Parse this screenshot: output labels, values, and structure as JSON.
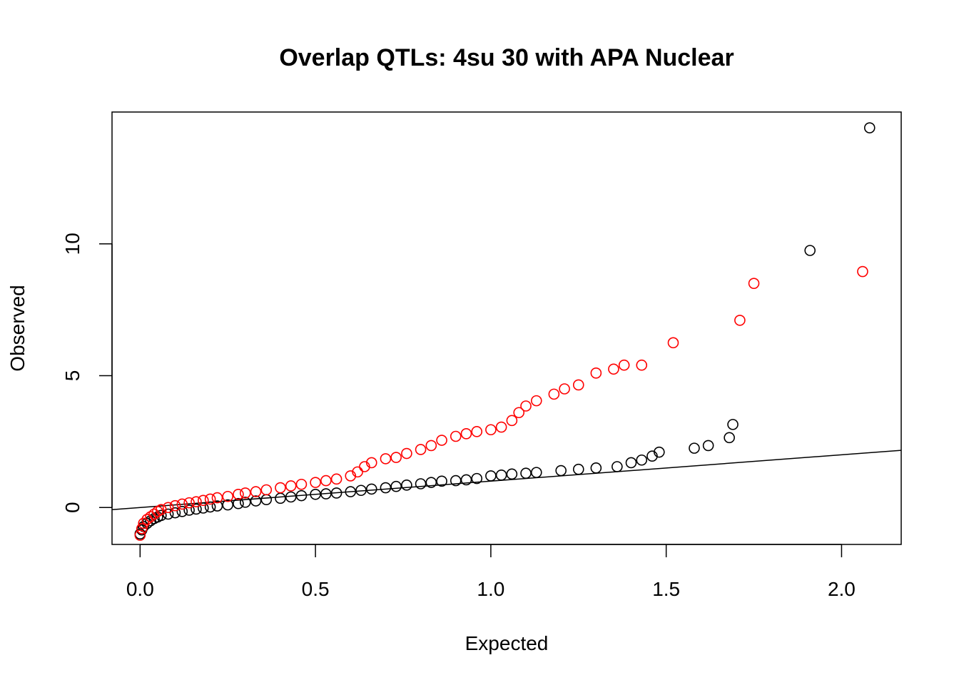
{
  "chart_data": {
    "type": "scatter",
    "title": "Overlap QTLs: 4su 30 with APA Nuclear",
    "xlabel": "Expected",
    "ylabel": "Observed",
    "xlim": [
      -0.08,
      2.17
    ],
    "ylim": [
      -1.4,
      15.0
    ],
    "x_ticks": [
      0.0,
      0.5,
      1.0,
      1.5,
      2.0
    ],
    "x_tick_labels": [
      "0.0",
      "0.5",
      "1.0",
      "1.5",
      "2.0"
    ],
    "y_ticks": [
      0,
      5,
      10
    ],
    "y_tick_labels": [
      "0",
      "5",
      "10"
    ],
    "grid": false,
    "legend": "none",
    "reference_line": {
      "intercept": 0,
      "slope": 1,
      "color": "#000000"
    },
    "series": [
      {
        "color": "#000000",
        "points": [
          [
            0.0,
            -1.0
          ],
          [
            0.005,
            -0.85
          ],
          [
            0.01,
            -0.72
          ],
          [
            0.02,
            -0.6
          ],
          [
            0.03,
            -0.5
          ],
          [
            0.04,
            -0.42
          ],
          [
            0.05,
            -0.36
          ],
          [
            0.06,
            -0.3
          ],
          [
            0.08,
            -0.25
          ],
          [
            0.1,
            -0.2
          ],
          [
            0.12,
            -0.15
          ],
          [
            0.14,
            -0.1
          ],
          [
            0.16,
            -0.06
          ],
          [
            0.18,
            -0.02
          ],
          [
            0.2,
            0.02
          ],
          [
            0.22,
            0.06
          ],
          [
            0.25,
            0.1
          ],
          [
            0.28,
            0.15
          ],
          [
            0.3,
            0.2
          ],
          [
            0.33,
            0.25
          ],
          [
            0.36,
            0.3
          ],
          [
            0.4,
            0.35
          ],
          [
            0.43,
            0.4
          ],
          [
            0.46,
            0.45
          ],
          [
            0.5,
            0.5
          ],
          [
            0.53,
            0.52
          ],
          [
            0.56,
            0.55
          ],
          [
            0.6,
            0.6
          ],
          [
            0.63,
            0.65
          ],
          [
            0.66,
            0.7
          ],
          [
            0.7,
            0.75
          ],
          [
            0.73,
            0.8
          ],
          [
            0.76,
            0.85
          ],
          [
            0.8,
            0.9
          ],
          [
            0.83,
            0.95
          ],
          [
            0.86,
            1.0
          ],
          [
            0.9,
            1.02
          ],
          [
            0.93,
            1.05
          ],
          [
            0.96,
            1.1
          ],
          [
            1.0,
            1.2
          ],
          [
            1.03,
            1.23
          ],
          [
            1.06,
            1.27
          ],
          [
            1.1,
            1.3
          ],
          [
            1.13,
            1.33
          ],
          [
            1.2,
            1.4
          ],
          [
            1.25,
            1.45
          ],
          [
            1.3,
            1.5
          ],
          [
            1.36,
            1.55
          ],
          [
            1.4,
            1.7
          ],
          [
            1.43,
            1.8
          ],
          [
            1.46,
            1.95
          ],
          [
            1.48,
            2.1
          ],
          [
            1.58,
            2.25
          ],
          [
            1.62,
            2.35
          ],
          [
            1.68,
            2.65
          ],
          [
            1.69,
            3.15
          ],
          [
            1.91,
            9.75
          ],
          [
            2.08,
            14.4
          ]
        ]
      },
      {
        "color": "#ff0000",
        "points": [
          [
            0.0,
            -1.05
          ],
          [
            0.005,
            -0.8
          ],
          [
            0.01,
            -0.6
          ],
          [
            0.02,
            -0.45
          ],
          [
            0.03,
            -0.35
          ],
          [
            0.04,
            -0.25
          ],
          [
            0.05,
            -0.15
          ],
          [
            0.06,
            -0.08
          ],
          [
            0.08,
            0.0
          ],
          [
            0.1,
            0.07
          ],
          [
            0.12,
            0.13
          ],
          [
            0.14,
            0.18
          ],
          [
            0.16,
            0.22
          ],
          [
            0.18,
            0.27
          ],
          [
            0.2,
            0.32
          ],
          [
            0.22,
            0.37
          ],
          [
            0.25,
            0.42
          ],
          [
            0.28,
            0.5
          ],
          [
            0.3,
            0.55
          ],
          [
            0.33,
            0.6
          ],
          [
            0.36,
            0.67
          ],
          [
            0.4,
            0.75
          ],
          [
            0.43,
            0.82
          ],
          [
            0.46,
            0.88
          ],
          [
            0.5,
            0.95
          ],
          [
            0.53,
            1.02
          ],
          [
            0.56,
            1.08
          ],
          [
            0.6,
            1.2
          ],
          [
            0.62,
            1.35
          ],
          [
            0.64,
            1.55
          ],
          [
            0.66,
            1.7
          ],
          [
            0.7,
            1.85
          ],
          [
            0.73,
            1.9
          ],
          [
            0.76,
            2.05
          ],
          [
            0.8,
            2.2
          ],
          [
            0.83,
            2.35
          ],
          [
            0.86,
            2.55
          ],
          [
            0.9,
            2.7
          ],
          [
            0.93,
            2.8
          ],
          [
            0.96,
            2.88
          ],
          [
            1.0,
            2.95
          ],
          [
            1.03,
            3.05
          ],
          [
            1.06,
            3.3
          ],
          [
            1.08,
            3.6
          ],
          [
            1.1,
            3.85
          ],
          [
            1.13,
            4.05
          ],
          [
            1.18,
            4.3
          ],
          [
            1.21,
            4.5
          ],
          [
            1.25,
            4.65
          ],
          [
            1.3,
            5.1
          ],
          [
            1.35,
            5.25
          ],
          [
            1.38,
            5.4
          ],
          [
            1.43,
            5.4
          ],
          [
            1.52,
            6.25
          ],
          [
            1.71,
            7.1
          ],
          [
            1.75,
            8.5
          ],
          [
            2.06,
            8.95
          ]
        ]
      }
    ]
  }
}
